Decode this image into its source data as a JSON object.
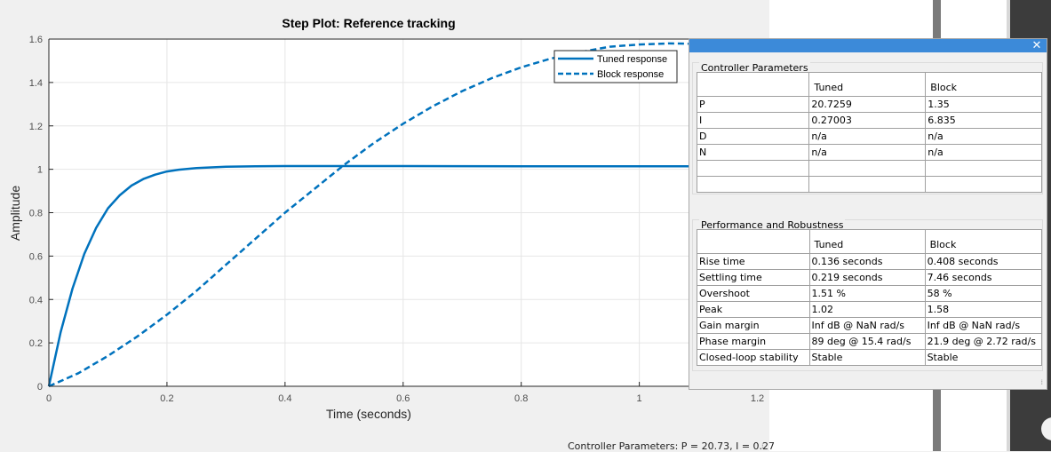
{
  "chart_data": {
    "type": "line",
    "title": "Step Plot: Reference tracking",
    "xlabel": "Time (seconds)",
    "ylabel": "Amplitude",
    "xlim": [
      0,
      1.3
    ],
    "ylim": [
      0,
      1.6
    ],
    "xticks": [
      "0",
      "0.2",
      "0.4",
      "0.6",
      "0.8",
      "1",
      "1.2"
    ],
    "yticks": [
      "0",
      "0.2",
      "0.4",
      "0.6",
      "0.8",
      "1",
      "1.2",
      "1.4",
      "1.6"
    ],
    "grid": true,
    "legend_position": "top-right",
    "series": [
      {
        "name": "Tuned response",
        "style": "solid",
        "color": "#0072bd",
        "x": [
          0,
          0.02,
          0.04,
          0.06,
          0.08,
          0.1,
          0.12,
          0.14,
          0.16,
          0.18,
          0.2,
          0.22,
          0.25,
          0.3,
          0.35,
          0.4,
          0.5,
          0.6,
          0.8,
          1.0,
          1.2,
          1.3
        ],
        "y": [
          0,
          0.25,
          0.45,
          0.61,
          0.73,
          0.82,
          0.88,
          0.925,
          0.955,
          0.975,
          0.99,
          0.998,
          1.006,
          1.012,
          1.014,
          1.015,
          1.015,
          1.015,
          1.014,
          1.014,
          1.013,
          1.013
        ]
      },
      {
        "name": "Block response",
        "style": "dashed",
        "color": "#0072bd",
        "x": [
          0,
          0.05,
          0.1,
          0.15,
          0.2,
          0.25,
          0.3,
          0.35,
          0.4,
          0.45,
          0.5,
          0.55,
          0.6,
          0.65,
          0.7,
          0.75,
          0.8,
          0.85,
          0.9,
          0.95,
          1.0,
          1.05,
          1.1,
          1.15,
          1.2,
          1.25,
          1.3
        ],
        "y": [
          0,
          0.06,
          0.14,
          0.23,
          0.33,
          0.44,
          0.56,
          0.68,
          0.8,
          0.91,
          1.02,
          1.12,
          1.21,
          1.29,
          1.36,
          1.42,
          1.47,
          1.51,
          1.54,
          1.565,
          1.575,
          1.58,
          1.578,
          1.57,
          1.56,
          1.545,
          1.53
        ]
      }
    ]
  },
  "status_text": "Controller Parameters: P = 20.73, I = 0.27",
  "panel": {
    "close_glyph": "✕",
    "controller": {
      "title": "Controller Parameters",
      "headers": [
        "",
        "Tuned",
        "Block"
      ],
      "rows": [
        [
          "P",
          "20.7259",
          "1.35"
        ],
        [
          "I",
          "0.27003",
          "6.835"
        ],
        [
          "D",
          "n/a",
          "n/a"
        ],
        [
          "N",
          "n/a",
          "n/a"
        ],
        [
          "",
          "",
          ""
        ],
        [
          "",
          "",
          ""
        ]
      ]
    },
    "performance": {
      "title": "Performance and Robustness",
      "headers": [
        "",
        "Tuned",
        "Block"
      ],
      "rows": [
        [
          "Rise time",
          "0.136 seconds",
          "0.408 seconds"
        ],
        [
          "Settling time",
          "0.219 seconds",
          "7.46 seconds"
        ],
        [
          "Overshoot",
          "1.51 %",
          "58 %"
        ],
        [
          "Peak",
          "1.02",
          "1.58"
        ],
        [
          "Gain margin",
          "Inf dB @ NaN rad/s",
          "Inf dB @ NaN rad/s"
        ],
        [
          "Phase margin",
          "89 deg @ 15.4 rad/s",
          "21.9 deg @ 2.72 rad/s"
        ],
        [
          "Closed-loop stability",
          "Stable",
          "Stable"
        ]
      ]
    }
  }
}
